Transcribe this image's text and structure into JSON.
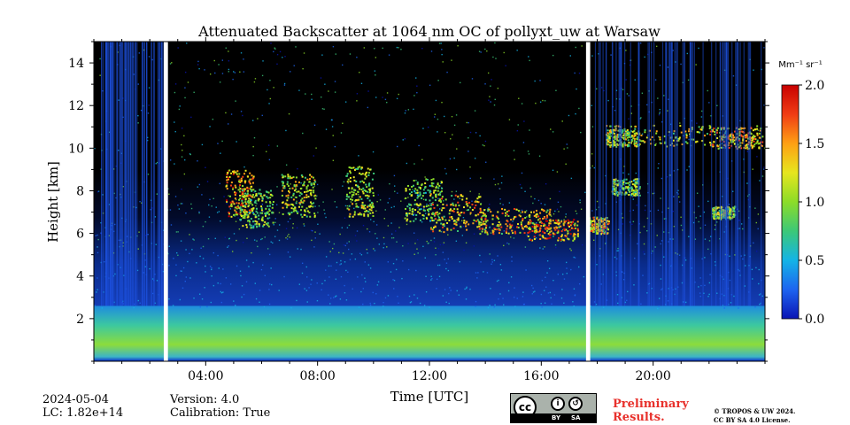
{
  "chart_data": {
    "type": "heatmap",
    "title": "Attenuated Backscatter at 1064 nm OC of pollyxt_uw at Warsaw",
    "xlabel": "Time [UTC]",
    "ylabel": "Height [km]",
    "xlim": [
      0,
      24
    ],
    "ylim": [
      0,
      15
    ],
    "x_ticks": [
      {
        "value": 4,
        "label": "04:00"
      },
      {
        "value": 8,
        "label": "08:00"
      },
      {
        "value": 12,
        "label": "12:00"
      },
      {
        "value": 16,
        "label": "16:00"
      },
      {
        "value": 20,
        "label": "20:00"
      }
    ],
    "y_ticks": [
      {
        "value": 2,
        "label": "2"
      },
      {
        "value": 4,
        "label": "4"
      },
      {
        "value": 6,
        "label": "6"
      },
      {
        "value": 8,
        "label": "8"
      },
      {
        "value": 10,
        "label": "10"
      },
      {
        "value": 12,
        "label": "12"
      },
      {
        "value": 14,
        "label": "14"
      }
    ],
    "colorbar": {
      "unit": "Mm⁻¹ sr⁻¹",
      "range": [
        0.0,
        2.0
      ],
      "ticks": [
        {
          "value": 0.0,
          "label": "0.0"
        },
        {
          "value": 0.5,
          "label": "0.5"
        },
        {
          "value": 1.0,
          "label": "1.0"
        },
        {
          "value": 1.5,
          "label": "1.5"
        },
        {
          "value": 2.0,
          "label": "2.0"
        }
      ],
      "colormap": [
        "#0a14b4",
        "#1e64f0",
        "#14b4e6",
        "#3cc878",
        "#8cdc28",
        "#e6e61e",
        "#ffa014",
        "#f03c14",
        "#c80000"
      ]
    },
    "data_gaps_hours": [
      [
        2.5,
        2.65
      ],
      [
        17.6,
        17.75
      ]
    ],
    "layers": [
      {
        "feature": "surface / boundary layer aerosol",
        "time_range": [
          0,
          24
        ],
        "height_km": [
          0.2,
          2.6
        ],
        "value_approx": 0.7
      },
      {
        "feature": "elevated aerosol / noise",
        "time_range": [
          0,
          24
        ],
        "height_km": [
          2.6,
          8.0
        ],
        "value_approx": 0.35
      },
      {
        "feature": "cirrus cloud band",
        "time_range": [
          4.8,
          18.5
        ],
        "height_km": [
          5.5,
          9.5
        ],
        "value_approx": 1.4
      },
      {
        "feature": "high cirrus",
        "time_range": [
          17.5,
          24
        ],
        "height_km": [
          9.5,
          11.2
        ],
        "value_approx": 1.6
      }
    ]
  },
  "meta": {
    "date": "2024-05-04",
    "lc": "LC: 1.82e+14",
    "version": "Version: 4.0",
    "calibration": "Calibration: True"
  },
  "license": {
    "cc_label": "cc",
    "by": "BY",
    "sa": "SA",
    "prelim_line1": "Preliminary",
    "prelim_line2": "Results.",
    "copyright_line1": "© TROPOS & UW 2024.",
    "copyright_line2": "CC BY SA 4.0 License."
  }
}
